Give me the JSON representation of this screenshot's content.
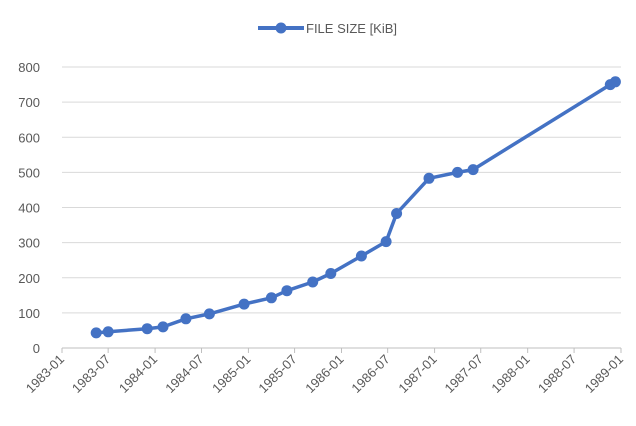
{
  "chart_data": {
    "type": "line",
    "legend": {
      "position": "top",
      "label": "FILE SIZE [KiB]"
    },
    "series": [
      {
        "name": "FILE SIZE [KiB]",
        "color": "#4472c4",
        "points": [
          {
            "x": "1983-05-15",
            "y": 43
          },
          {
            "x": "1983-07-01",
            "y": 46
          },
          {
            "x": "1983-12-01",
            "y": 55
          },
          {
            "x": "1984-02-01",
            "y": 60
          },
          {
            "x": "1984-05-01",
            "y": 83
          },
          {
            "x": "1984-08-01",
            "y": 97
          },
          {
            "x": "1984-12-15",
            "y": 125
          },
          {
            "x": "1985-04-01",
            "y": 143
          },
          {
            "x": "1985-06-01",
            "y": 163
          },
          {
            "x": "1985-09-10",
            "y": 188
          },
          {
            "x": "1985-11-20",
            "y": 212
          },
          {
            "x": "1986-03-20",
            "y": 262
          },
          {
            "x": "1986-06-25",
            "y": 303
          },
          {
            "x": "1986-08-05",
            "y": 383
          },
          {
            "x": "1986-12-10",
            "y": 483
          },
          {
            "x": "1987-04-01",
            "y": 500
          },
          {
            "x": "1987-06-01",
            "y": 508
          },
          {
            "x": "1988-11-20",
            "y": 750
          },
          {
            "x": "1988-12-10",
            "y": 758
          }
        ]
      }
    ],
    "xaxis": {
      "min": "1983-01-01",
      "max": "1989-01-01",
      "ticks": [
        "1983-01",
        "1983-07",
        "1984-01",
        "1984-07",
        "1985-01",
        "1985-07",
        "1986-01",
        "1986-07",
        "1987-01",
        "1987-07",
        "1988-01",
        "1988-07",
        "1989-01"
      ]
    },
    "yaxis": {
      "min": 0,
      "max": 800,
      "ticks": [
        0,
        100,
        200,
        300,
        400,
        500,
        600,
        700,
        800
      ]
    },
    "grid": true
  }
}
